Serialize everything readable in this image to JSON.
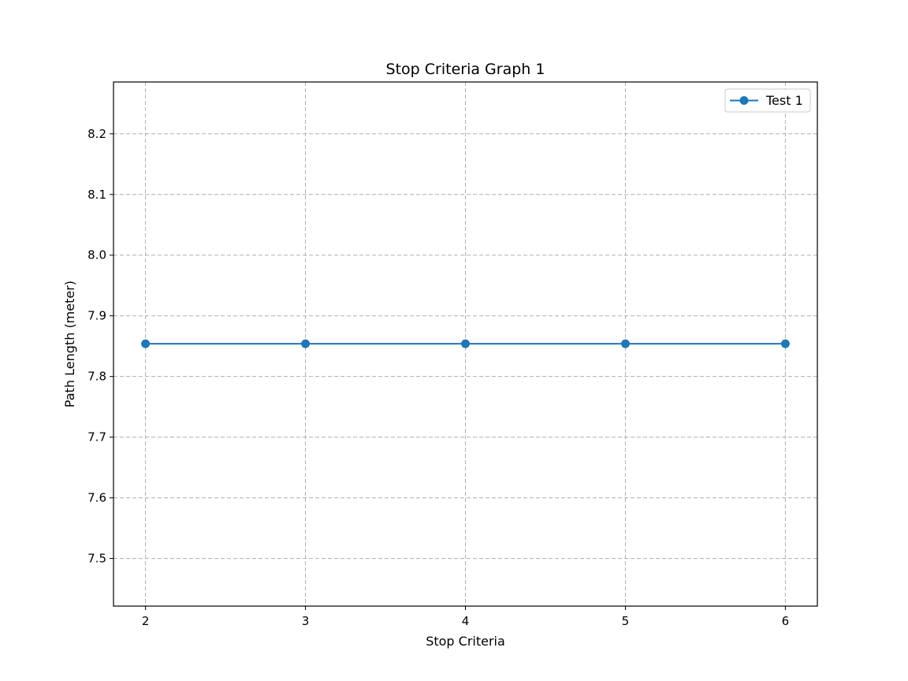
{
  "chart_data": {
    "type": "line",
    "title": "Stop Criteria Graph 1",
    "xlabel": "Stop Criteria",
    "ylabel": "Path Length (meter)",
    "x": [
      2,
      3,
      4,
      5,
      6
    ],
    "xticks": [
      "2",
      "3",
      "4",
      "5",
      "6"
    ],
    "yticks": [
      "7.5",
      "7.6",
      "7.7",
      "7.8",
      "7.9",
      "8.0",
      "8.1",
      "8.2"
    ],
    "xlim": [
      1.8,
      6.2
    ],
    "ylim": [
      7.4215,
      8.2855
    ],
    "grid": true,
    "legend_position": "top-right",
    "series": [
      {
        "name": "Test 1",
        "color": "#1f77b4",
        "marker": "circle",
        "values": [
          7.854,
          7.854,
          7.854,
          7.854,
          7.854
        ]
      }
    ]
  }
}
